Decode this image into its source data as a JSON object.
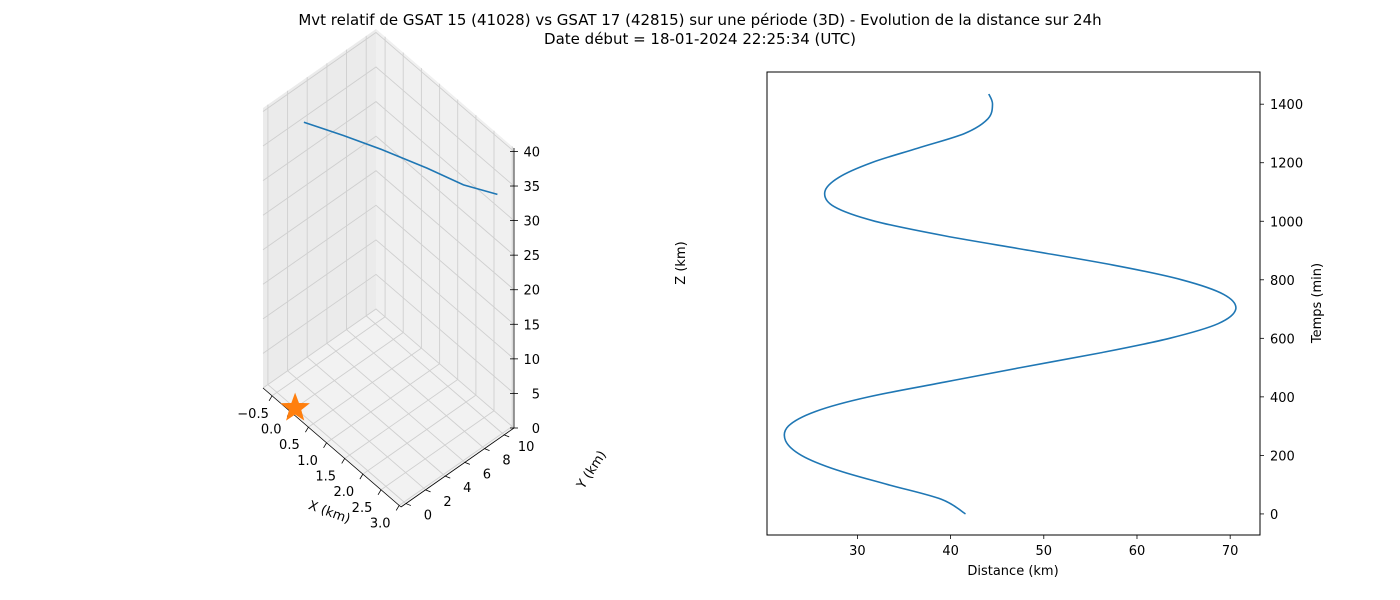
{
  "figure": {
    "title_line1": "Mvt relatif de GSAT 15 (41028) vs GSAT 17 (42815) sur une période (3D) - Evolution de la distance sur 24h",
    "title_line2": "Date début = 18-01-2024 22:25:34 (UTC)"
  },
  "chart_data": [
    {
      "type": "line",
      "projection": "3d",
      "xlabel": "X (km)",
      "ylabel": "Y (km)",
      "zlabel": "Z (km)",
      "xticks": [
        "−0.5",
        "0.0",
        "0.5",
        "1.0",
        "1.5",
        "2.0",
        "2.5",
        "3.0"
      ],
      "yticks": [
        "0",
        "2",
        "4",
        "6",
        "8",
        "10"
      ],
      "zticks": [
        "0",
        "5",
        "10",
        "15",
        "20",
        "25",
        "30",
        "35",
        "40"
      ],
      "xlim": [
        -0.75,
        3.05
      ],
      "ylim": [
        -0.5,
        11
      ],
      "zlim": [
        0,
        40.5
      ],
      "grid": true,
      "series": [
        {
          "line_color": "#1f77b4",
          "points": [
            {
              "x": -0.3,
              "y": 2.0,
              "z": 38.0
            },
            {
              "x": 0.3,
              "y": 3.8,
              "z": 37.0
            },
            {
              "x": 0.9,
              "y": 5.5,
              "z": 36.0
            },
            {
              "x": 1.6,
              "y": 7.5,
              "z": 34.5
            },
            {
              "x": 2.2,
              "y": 9.0,
              "z": 33.3
            },
            {
              "x": 2.7,
              "y": 10.6,
              "z": 32.6
            }
          ]
        }
      ],
      "marker": {
        "shape": "star",
        "color": "#ff7f0e",
        "x": 0,
        "y": 0,
        "z": 0
      }
    },
    {
      "type": "line",
      "xlabel": "Distance (km)",
      "ylabel": "Temps (min)",
      "xticks": [
        30,
        40,
        50,
        60,
        70
      ],
      "yticks": [
        0,
        200,
        400,
        600,
        800,
        1000,
        1200,
        1400
      ],
      "xlim": [
        20.3,
        73.2
      ],
      "ylim": [
        -72,
        1510
      ],
      "grid": false,
      "y_axis_side": "right",
      "series": [
        {
          "line_color": "#1f77b4",
          "x": [
            41.6,
            39.0,
            33.3,
            27.8,
            24.0,
            22.3,
            22.6,
            25.5,
            31.2,
            39.3,
            47.5,
            56.0,
            63.5,
            68.7,
            70.6,
            69.3,
            64.8,
            57.5,
            48.5,
            39.4,
            31.9,
            27.5,
            26.5,
            28.0,
            31.5,
            36.5,
            41.5,
            44.0,
            44.5,
            44.1
          ],
          "y": [
            0,
            50,
            100,
            150,
            200,
            250,
            300,
            350,
            400,
            450,
            500,
            550,
            600,
            650,
            700,
            750,
            800,
            850,
            900,
            950,
            1000,
            1050,
            1100,
            1150,
            1200,
            1250,
            1300,
            1350,
            1400,
            1435
          ]
        }
      ]
    }
  ]
}
